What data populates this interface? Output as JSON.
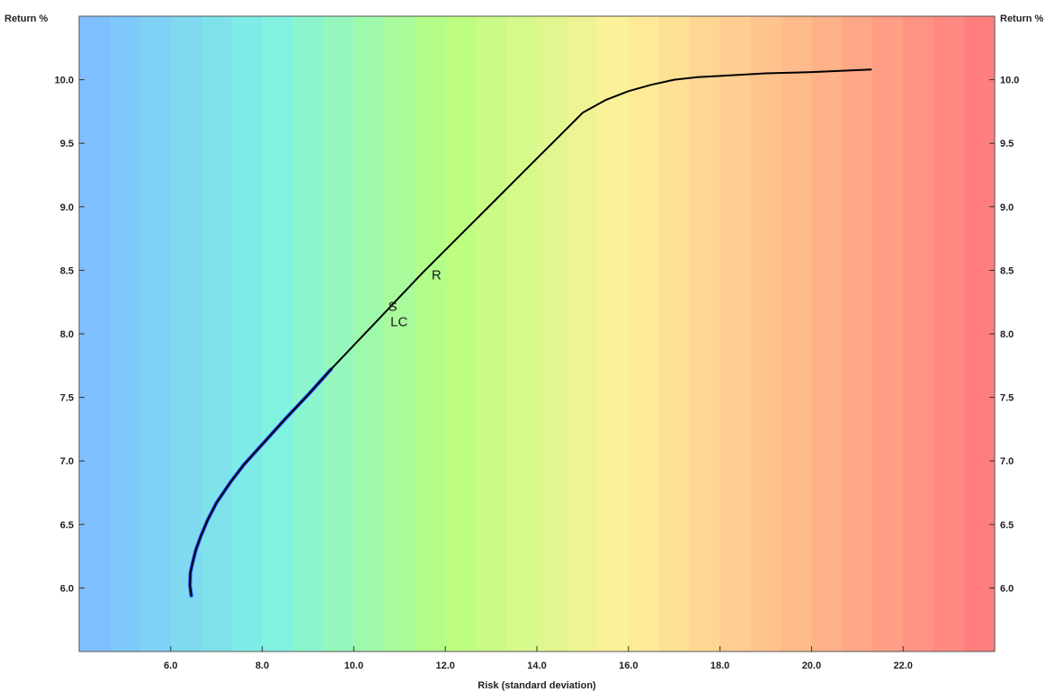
{
  "chart_data": {
    "type": "line",
    "title": "",
    "xlabel": "Risk (standard deviation)",
    "ylabel_left": "Return %",
    "ylabel_right": "Return %",
    "xlim": [
      4.0,
      24.0
    ],
    "ylim": [
      5.5,
      10.5
    ],
    "x_ticks": [
      6.0,
      8.0,
      10.0,
      12.0,
      14.0,
      16.0,
      18.0,
      20.0,
      22.0
    ],
    "x_tick_labels": [
      "6.0",
      "8.0",
      "10.0",
      "12.0",
      "14.0",
      "16.0",
      "18.0",
      "20.0",
      "22.0"
    ],
    "y_ticks": [
      6.0,
      6.5,
      7.0,
      7.5,
      8.0,
      8.5,
      9.0,
      9.5,
      10.0
    ],
    "y_tick_labels": [
      "6.0",
      "6.5",
      "7.0",
      "7.5",
      "8.0",
      "8.5",
      "9.0",
      "9.5",
      "10.0"
    ],
    "grid": false,
    "background_gradient": [
      "#7fbfff",
      "#7ff2e2",
      "#b8ff7f",
      "#fff09a",
      "#ffb98a",
      "#ff7f7f"
    ],
    "line_color": "#000000",
    "low_segment_color": "#1f4fff",
    "series": [
      {
        "x": [
          6.45,
          6.42,
          6.43,
          6.48,
          6.55,
          6.65,
          6.8,
          7.0,
          7.3,
          7.6,
          8.0,
          8.5,
          9.0,
          9.5,
          10.0,
          10.5,
          11.0,
          11.5,
          12.0,
          12.5,
          13.0,
          13.5,
          14.0,
          14.5,
          15.0,
          15.5,
          16.0,
          16.5,
          17.0,
          17.5,
          18.0,
          19.0,
          20.0,
          21.3
        ],
        "y": [
          5.94,
          6.02,
          6.12,
          6.2,
          6.3,
          6.4,
          6.53,
          6.67,
          6.83,
          6.97,
          7.13,
          7.33,
          7.52,
          7.72,
          7.91,
          8.1,
          8.29,
          8.48,
          8.66,
          8.84,
          9.02,
          9.2,
          9.38,
          9.56,
          9.74,
          9.84,
          9.91,
          9.96,
          10.0,
          10.02,
          10.03,
          10.05,
          10.06,
          10.08
        ]
      }
    ],
    "points": [
      {
        "label": "S",
        "x": 10.75,
        "y": 8.18
      },
      {
        "label": "LC",
        "x": 10.8,
        "y": 8.06
      },
      {
        "label": "R",
        "x": 11.7,
        "y": 8.43
      }
    ]
  }
}
